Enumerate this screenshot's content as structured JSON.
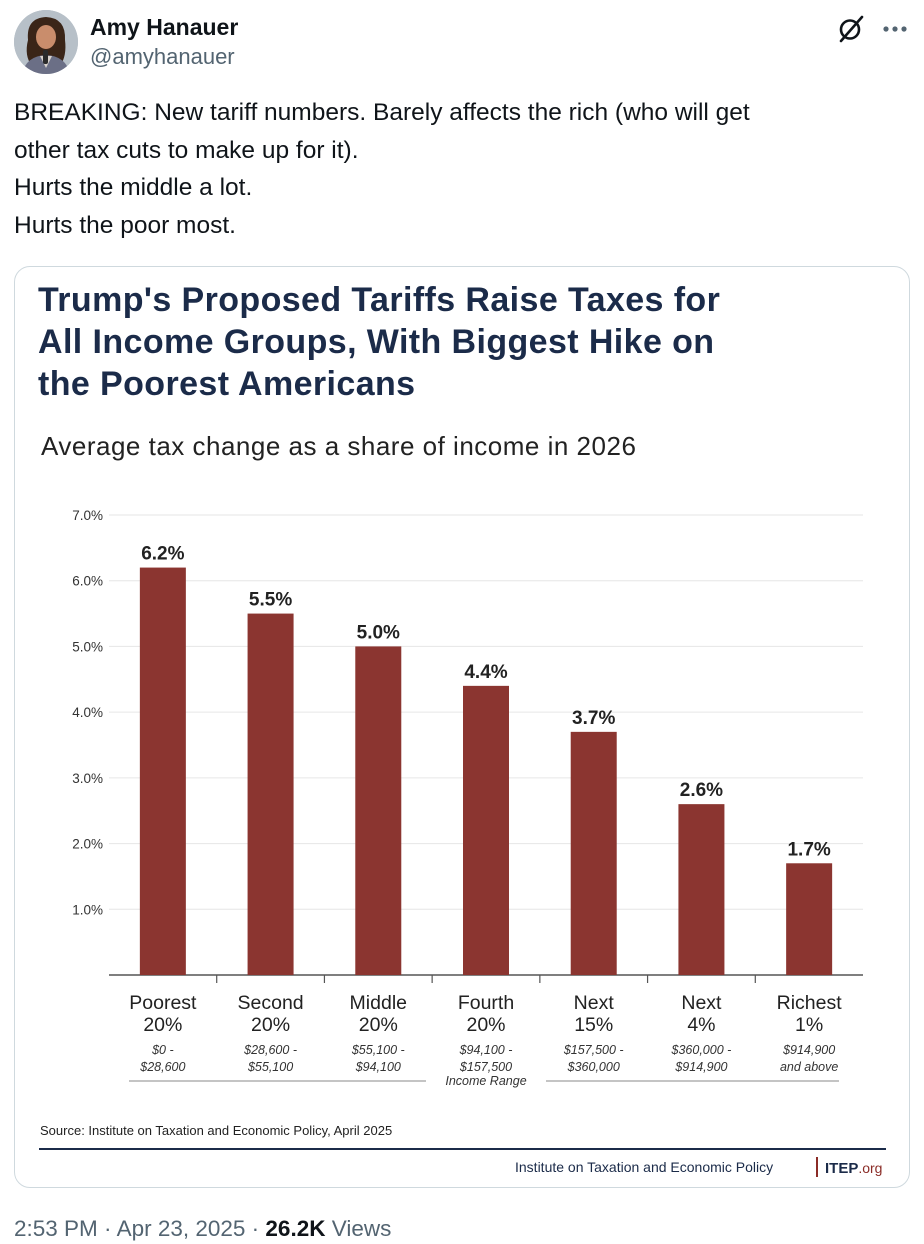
{
  "author": {
    "name": "Amy Hanauer",
    "handle": "@amyhanauer"
  },
  "icons": {
    "grok": "grok-icon",
    "more": "more-icon"
  },
  "tweet": {
    "lines": [
      "BREAKING: New tariff numbers. Barely affects the rich (who will get",
      "other tax cuts to make up for it).",
      "Hurts the middle a lot.",
      "Hurts the poor most."
    ]
  },
  "chart_card": {
    "title_lines": [
      "Trump's Proposed Tariffs Raise Taxes for",
      "All Income Groups, With Biggest Hike on",
      "the Poorest Americans"
    ],
    "subtitle": "Average tax change as a share of income in 2026",
    "source": "Source: Institute on Taxation and Economic Policy, April 2025",
    "footer_org": "Institute on Taxation and Economic Policy",
    "logo_main": "ITEP",
    "logo_suffix": ".org"
  },
  "chart_data": {
    "type": "bar",
    "title": "Trump's Proposed Tariffs Raise Taxes for All Income Groups, With Biggest Hike on the Poorest Americans",
    "subtitle": "Average tax change as a share of income in 2026",
    "categories": [
      [
        "Poorest",
        "20%"
      ],
      [
        "Second",
        "20%"
      ],
      [
        "Middle",
        "20%"
      ],
      [
        "Fourth",
        "20%"
      ],
      [
        "Next",
        "15%"
      ],
      [
        "Next",
        "4%"
      ],
      [
        "Richest",
        "1%"
      ]
    ],
    "income_ranges": [
      [
        "$0 -",
        "$28,600"
      ],
      [
        "$28,600 -",
        "$55,100"
      ],
      [
        "$55,100 -",
        "$94,100"
      ],
      [
        "$94,100 -",
        "$157,500"
      ],
      [
        "$157,500 -",
        "$360,000"
      ],
      [
        "$360,000 -",
        "$914,900"
      ],
      [
        "$914,900",
        "and above"
      ]
    ],
    "values": [
      6.2,
      5.5,
      5.0,
      4.4,
      3.7,
      2.6,
      1.7
    ],
    "value_labels": [
      "6.2%",
      "5.5%",
      "5.0%",
      "4.4%",
      "3.7%",
      "2.6%",
      "1.7%"
    ],
    "yticks": [
      1.0,
      2.0,
      3.0,
      4.0,
      5.0,
      6.0,
      7.0
    ],
    "ytick_labels": [
      "1.0%",
      "2.0%",
      "3.0%",
      "4.0%",
      "5.0%",
      "6.0%",
      "7.0%"
    ],
    "ylim": [
      0,
      7
    ],
    "xlabel": "Income Range",
    "ylabel": "",
    "grid": true,
    "bar_color": "#8b3530"
  },
  "meta": {
    "time": "2:53 PM",
    "separator": " · ",
    "date": "Apr 23, 2025",
    "views_count": "26.2K",
    "views_label": " Views"
  },
  "colors": {
    "title_navy": "#1b2b49",
    "bar_red": "#8b3530",
    "muted_text": "#536471",
    "card_border": "#cfd9de"
  }
}
